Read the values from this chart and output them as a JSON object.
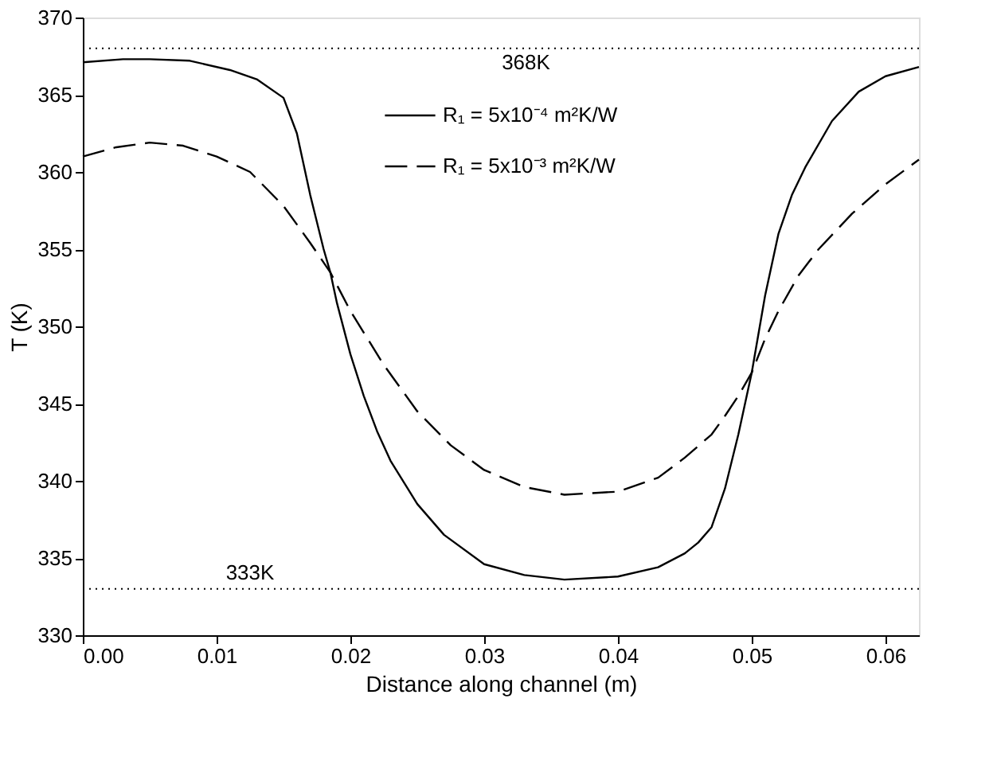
{
  "chart_data": {
    "type": "line",
    "xlabel": "Distance along channel (m)",
    "ylabel": "T (K)",
    "xlim": [
      0,
      0.0625
    ],
    "xticks": [
      {
        "value": 0,
        "label": "0.00"
      },
      {
        "value": 0.01,
        "label": "0.01"
      },
      {
        "value": 0.02,
        "label": "0.02"
      },
      {
        "value": 0.03,
        "label": "0.03"
      },
      {
        "value": 0.04,
        "label": "0.04"
      },
      {
        "value": 0.05,
        "label": "0.05"
      },
      {
        "value": 0.06,
        "label": "0.06"
      }
    ],
    "ylim": [
      330,
      370
    ],
    "yticks": [
      330,
      335,
      340,
      345,
      350,
      355,
      360,
      365,
      370
    ],
    "grid": false,
    "legend": "top",
    "marker": "none",
    "series": [
      {
        "name": "R₁ = 5x10⁻⁴ m²K/W",
        "color": "#000000",
        "line_style": "solid",
        "x": [
          0,
          0.003,
          0.005,
          0.008,
          0.011,
          0.013,
          0.015,
          0.016,
          0.017,
          0.018,
          0.0185,
          0.019,
          0.02,
          0.021,
          0.022,
          0.023,
          0.025,
          0.027,
          0.03,
          0.033,
          0.036,
          0.04,
          0.043,
          0.045,
          0.046,
          0.047,
          0.048,
          0.049,
          0.05,
          0.051,
          0.052,
          0.053,
          0.054,
          0.056,
          0.058,
          0.06,
          0.0625
        ],
        "values": [
          367.1,
          367.3,
          367.3,
          367.2,
          366.6,
          366,
          364.8,
          362.5,
          358.5,
          355,
          353.5,
          351.5,
          348.2,
          345.5,
          343.2,
          341.3,
          338.5,
          336.5,
          334.6,
          333.9,
          333.6,
          333.8,
          334.4,
          335.3,
          336,
          337,
          339.5,
          343,
          347,
          352,
          356,
          358.5,
          360.3,
          363.3,
          365.2,
          366.2,
          366.8
        ]
      },
      {
        "name": "R₁ = 5x10⁻³ m²K/W",
        "color": "#000000",
        "line_style": "dashed",
        "x": [
          0,
          0.0025,
          0.005,
          0.0075,
          0.01,
          0.0125,
          0.015,
          0.017,
          0.0185,
          0.02,
          0.0225,
          0.025,
          0.0275,
          0.03,
          0.033,
          0.036,
          0.04,
          0.043,
          0.045,
          0.047,
          0.048,
          0.049,
          0.05,
          0.051,
          0.052,
          0.0535,
          0.055,
          0.0575,
          0.06,
          0.0625
        ],
        "values": [
          361,
          361.6,
          361.9,
          361.7,
          361,
          360,
          357.8,
          355.4,
          353.5,
          351,
          347.5,
          344.5,
          342.3,
          340.7,
          339.6,
          339.1,
          339.3,
          340.2,
          341.5,
          343,
          344.2,
          345.5,
          347,
          349.2,
          351,
          353.3,
          355,
          357.3,
          359.2,
          360.8
        ]
      }
    ],
    "ref_lines": [
      {
        "axis": "y",
        "value": 368,
        "label": "368K",
        "color": "#000000",
        "line_style": "dotted"
      },
      {
        "axis": "y",
        "value": 333,
        "label": "333K",
        "color": "#000000",
        "line_style": "dotted"
      }
    ]
  }
}
